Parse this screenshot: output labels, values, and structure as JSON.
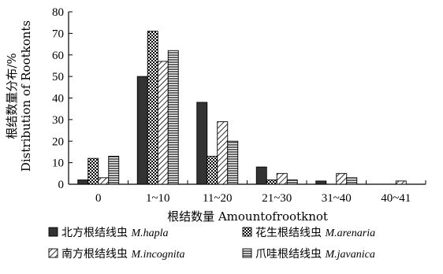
{
  "chart_data": {
    "type": "bar",
    "categories": [
      "0",
      "1~10",
      "11~20",
      "21~30",
      "31~40",
      "40~41"
    ],
    "series": [
      {
        "name_cn": "北方根结线虫",
        "name_latin": "M.hapla",
        "pattern": "solid",
        "values": [
          2,
          50,
          38,
          8,
          1.5,
          0
        ]
      },
      {
        "name_cn": "花生根结线虫",
        "name_latin": "M.arenaria",
        "pattern": "checker",
        "values": [
          12,
          71,
          13,
          2,
          0,
          0
        ]
      },
      {
        "name_cn": "南方根结线虫",
        "name_latin": "M.incognita",
        "pattern": "diagonal",
        "values": [
          3,
          57,
          29,
          5,
          5,
          1.5
        ]
      },
      {
        "name_cn": "爪哇根结线虫",
        "name_latin": "M.javanica",
        "pattern": "horizontal",
        "values": [
          13,
          62,
          20,
          2,
          3,
          0
        ]
      }
    ],
    "xlabel": "根结数量 Amountofrootknot",
    "ylabel_line1": "根结数量分布/%",
    "ylabel_line2": "Distribution of Rootkonts",
    "ylim": [
      0,
      80
    ],
    "yticks": [
      0,
      10,
      20,
      30,
      40,
      50,
      60,
      70,
      80
    ],
    "grid": false,
    "legend_position": "bottom"
  },
  "colors": {
    "solid": "#333333",
    "stroke": "#000000"
  }
}
